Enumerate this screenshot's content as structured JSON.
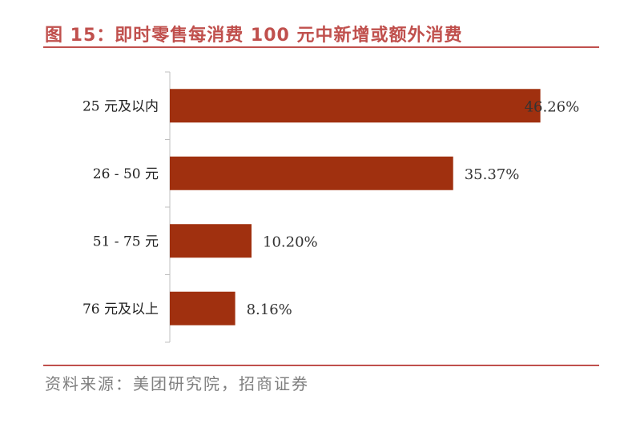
{
  "title": "图 15：即时零售每消费 100 元中新增或额外消费",
  "source": "资料来源：美团研究院，招商证券",
  "colors": {
    "bar": "#a0300f",
    "accent": "#c0504d",
    "axis": "#bfbfbf"
  },
  "chart_data": {
    "type": "bar",
    "orientation": "horizontal",
    "title": "图 15：即时零售每消费 100 元中新增或额外消费",
    "categories": [
      "25 元及以内",
      "26 - 50 元",
      "51 - 75 元",
      "76 元及以上"
    ],
    "values": [
      46.26,
      35.37,
      10.2,
      8.16
    ],
    "value_labels": [
      "46.26%",
      "35.37%",
      "10.20%",
      "8.16%"
    ],
    "xlim": [
      0,
      50
    ],
    "grid": false,
    "legend": "none"
  }
}
